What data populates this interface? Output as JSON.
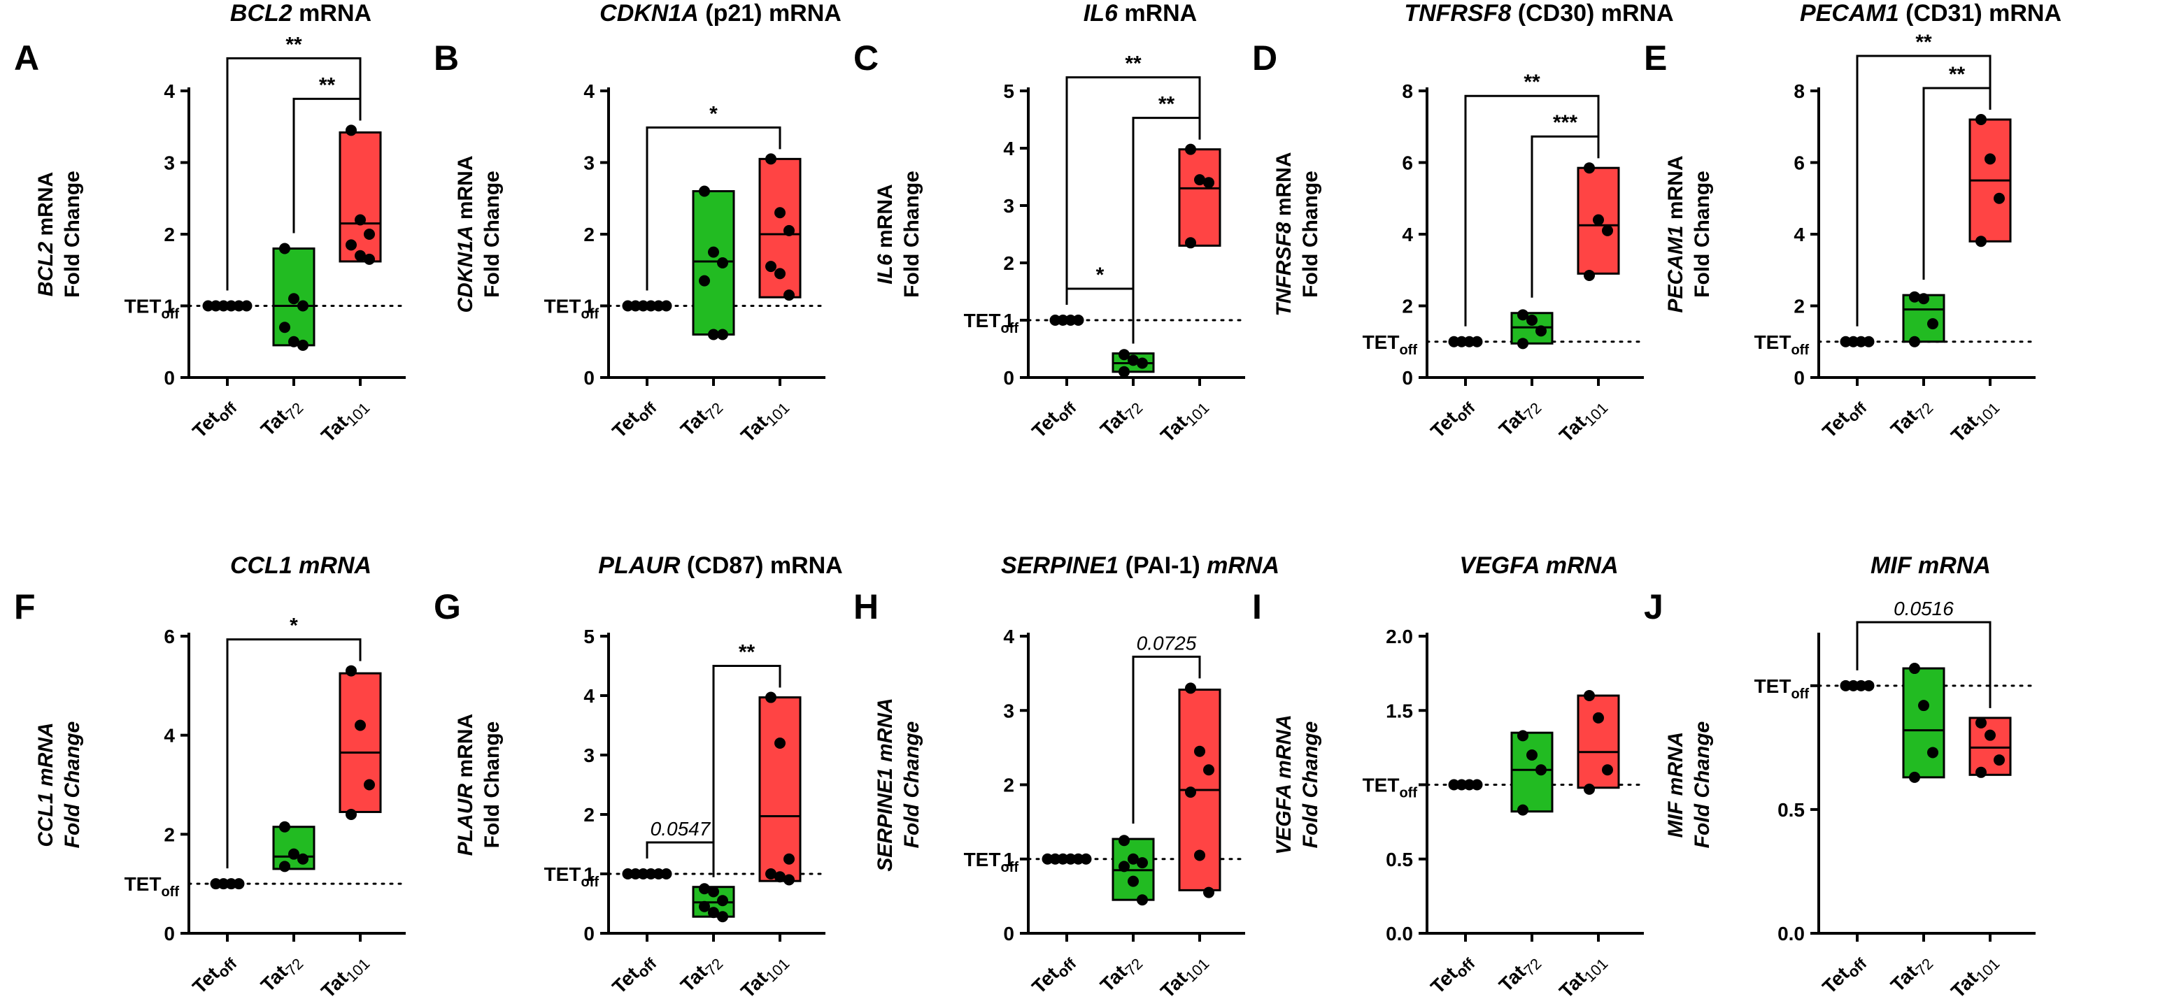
{
  "figure": {
    "reference_label": "TET",
    "reference_sub": "off"
  },
  "chart_data": [
    {
      "letter": "A",
      "type": "box",
      "title": [
        {
          "text": "BCL2",
          "italic": true
        },
        {
          "text": " mRNA",
          "italic": false
        }
      ],
      "ylabel": [
        [
          {
            "text": "BCL2",
            "italic": true
          },
          {
            "text": " mRNA",
            "italic": false
          }
        ],
        [
          {
            "text": "Fold Change",
            "italic": false
          }
        ]
      ],
      "ylim": [
        0,
        4
      ],
      "yticks": [
        0,
        1,
        2,
        3,
        4
      ],
      "scale": "linear",
      "groups": [
        {
          "name": "Tet",
          "sub": "off",
          "color": "none",
          "box": null,
          "points": [
            1,
            1,
            1,
            1,
            1,
            1
          ]
        },
        {
          "name": "Tat",
          "sub": "72",
          "color": "#22bb22",
          "box": [
            0.45,
            1.0,
            1.8
          ],
          "points": [
            1.8,
            1.1,
            1.0,
            0.7,
            0.5,
            0.45
          ]
        },
        {
          "name": "Tat",
          "sub": "101",
          "color": "#ff4444",
          "box": [
            1.62,
            2.15,
            3.42
          ],
          "points": [
            3.45,
            2.2,
            2.0,
            1.85,
            1.7,
            1.65
          ]
        }
      ],
      "sig": [
        {
          "from": 0,
          "to": 2,
          "label": "**",
          "italic": false
        },
        {
          "from": 1,
          "to": 2,
          "label": "**",
          "italic": false
        }
      ]
    },
    {
      "letter": "B",
      "type": "box",
      "title": [
        {
          "text": "CDKN1A",
          "italic": true
        },
        {
          "text": " (p21) mRNA",
          "italic": false
        }
      ],
      "ylabel": [
        [
          {
            "text": "CDKN1A",
            "italic": true
          },
          {
            "text": " mRNA",
            "italic": false
          }
        ],
        [
          {
            "text": "Fold Change",
            "italic": false
          }
        ]
      ],
      "ylim": [
        0,
        4
      ],
      "yticks": [
        0,
        1,
        2,
        3,
        4
      ],
      "scale": "linear",
      "groups": [
        {
          "name": "Tet",
          "sub": "off",
          "color": "none",
          "box": null,
          "points": [
            1,
            1,
            1,
            1,
            1,
            1
          ]
        },
        {
          "name": "Tat",
          "sub": "72",
          "color": "#22bb22",
          "box": [
            0.6,
            1.62,
            2.6
          ],
          "points": [
            2.6,
            1.75,
            1.6,
            1.35,
            0.6,
            0.6
          ]
        },
        {
          "name": "Tat",
          "sub": "101",
          "color": "#ff4444",
          "box": [
            1.12,
            2.0,
            3.05
          ],
          "points": [
            3.05,
            2.3,
            2.05,
            1.55,
            1.45,
            1.15
          ]
        }
      ],
      "sig": [
        {
          "from": 0,
          "to": 2,
          "label": "*",
          "italic": false
        }
      ]
    },
    {
      "letter": "C",
      "type": "box",
      "title": [
        {
          "text": "IL6",
          "italic": true
        },
        {
          "text": " mRNA",
          "italic": false
        }
      ],
      "ylabel": [
        [
          {
            "text": "IL6",
            "italic": true
          },
          {
            "text": " mRNA",
            "italic": false
          }
        ],
        [
          {
            "text": "Fold Change",
            "italic": false
          }
        ]
      ],
      "ylim": [
        0,
        5
      ],
      "yticks": [
        0,
        1,
        2,
        3,
        4,
        5
      ],
      "scale": "linear",
      "groups": [
        {
          "name": "Tet",
          "sub": "off",
          "color": "none",
          "box": null,
          "points": [
            1,
            1,
            1,
            1
          ]
        },
        {
          "name": "Tat",
          "sub": "72",
          "color": "#22bb22",
          "box": [
            0.1,
            0.25,
            0.42
          ],
          "points": [
            0.4,
            0.3,
            0.25,
            0.1
          ]
        },
        {
          "name": "Tat",
          "sub": "101",
          "color": "#ff4444",
          "box": [
            2.3,
            3.3,
            3.98
          ],
          "points": [
            3.98,
            3.45,
            3.4,
            2.35
          ]
        }
      ],
      "sig": [
        {
          "from": 0,
          "to": 2,
          "label": "**",
          "italic": false
        },
        {
          "from": 1,
          "to": 2,
          "label": "**",
          "italic": false
        },
        {
          "from": 0,
          "to": 1,
          "label": "*",
          "italic": false
        }
      ]
    },
    {
      "letter": "D",
      "type": "box",
      "title": [
        {
          "text": "TNFRSF8",
          "italic": true
        },
        {
          "text": " (CD30) mRNA",
          "italic": false
        }
      ],
      "ylabel": [
        [
          {
            "text": "TNFRSF8",
            "italic": true
          },
          {
            "text": " mRNA",
            "italic": false
          }
        ],
        [
          {
            "text": "Fold Change",
            "italic": false
          }
        ]
      ],
      "ylim": [
        0,
        8
      ],
      "yticks": [
        0,
        2,
        4,
        6,
        8
      ],
      "scale": "linear",
      "groups": [
        {
          "name": "Tet",
          "sub": "off",
          "color": "none",
          "box": null,
          "points": [
            1,
            1,
            1,
            1
          ]
        },
        {
          "name": "Tat",
          "sub": "72",
          "color": "#22bb22",
          "box": [
            0.95,
            1.4,
            1.8
          ],
          "points": [
            1.75,
            1.6,
            1.3,
            0.95
          ]
        },
        {
          "name": "Tat",
          "sub": "101",
          "color": "#ff4444",
          "box": [
            2.9,
            4.25,
            5.85
          ],
          "points": [
            5.85,
            4.4,
            4.1,
            2.85
          ]
        }
      ],
      "sig": [
        {
          "from": 0,
          "to": 2,
          "label": "**",
          "italic": false
        },
        {
          "from": 1,
          "to": 2,
          "label": "***",
          "italic": false
        }
      ]
    },
    {
      "letter": "E",
      "type": "box",
      "title": [
        {
          "text": "PECAM1",
          "italic": true
        },
        {
          "text": " (CD31) mRNA",
          "italic": false
        }
      ],
      "ylabel": [
        [
          {
            "text": "PECAM1",
            "italic": true
          },
          {
            "text": " mRNA",
            "italic": false
          }
        ],
        [
          {
            "text": "Fold Change",
            "italic": false
          }
        ]
      ],
      "ylim": [
        0,
        8
      ],
      "yticks": [
        0,
        2,
        4,
        6,
        8
      ],
      "scale": "linear",
      "groups": [
        {
          "name": "Tet",
          "sub": "off",
          "color": "none",
          "box": null,
          "points": [
            1,
            1,
            1,
            1
          ]
        },
        {
          "name": "Tat",
          "sub": "72",
          "color": "#22bb22",
          "box": [
            1.0,
            1.9,
            2.3
          ],
          "points": [
            2.25,
            2.2,
            1.5,
            1.0
          ]
        },
        {
          "name": "Tat",
          "sub": "101",
          "color": "#ff4444",
          "box": [
            3.8,
            5.5,
            7.2
          ],
          "points": [
            7.2,
            6.1,
            5.0,
            3.8
          ]
        }
      ],
      "sig": [
        {
          "from": 0,
          "to": 2,
          "label": "**",
          "italic": false
        },
        {
          "from": 1,
          "to": 2,
          "label": "**",
          "italic": false
        }
      ]
    },
    {
      "letter": "F",
      "type": "box",
      "title": [
        {
          "text": "CCL1 mRNA",
          "italic": true
        }
      ],
      "ylabel": [
        [
          {
            "text": "CCL1 mRNA",
            "italic": true
          }
        ],
        [
          {
            "text": "Fold Change",
            "italic": true
          }
        ]
      ],
      "ylim": [
        0,
        6
      ],
      "yticks": [
        0,
        2,
        4,
        6
      ],
      "scale": "linear",
      "groups": [
        {
          "name": "Tet",
          "sub": "off",
          "color": "none",
          "box": null,
          "points": [
            1,
            1,
            1,
            1
          ]
        },
        {
          "name": "Tat",
          "sub": "72",
          "color": "#22bb22",
          "box": [
            1.3,
            1.55,
            2.15
          ],
          "points": [
            2.15,
            1.6,
            1.5,
            1.35
          ]
        },
        {
          "name": "Tat",
          "sub": "101",
          "color": "#ff4444",
          "box": [
            2.45,
            3.65,
            5.25
          ],
          "points": [
            5.3,
            4.2,
            3.0,
            2.4
          ]
        }
      ],
      "sig": [
        {
          "from": 0,
          "to": 2,
          "label": "*",
          "italic": false
        }
      ]
    },
    {
      "letter": "G",
      "type": "box",
      "title": [
        {
          "text": "PLAUR",
          "italic": true
        },
        {
          "text": " (CD87) mRNA",
          "italic": false
        }
      ],
      "ylabel": [
        [
          {
            "text": "PLAUR",
            "italic": true
          },
          {
            "text": " mRNA",
            "italic": false
          }
        ],
        [
          {
            "text": "Fold Change",
            "italic": false
          }
        ]
      ],
      "ylim": [
        0,
        5
      ],
      "yticks": [
        0,
        1,
        2,
        3,
        4,
        5
      ],
      "scale": "linear",
      "groups": [
        {
          "name": "Tet",
          "sub": "off",
          "color": "none",
          "box": null,
          "points": [
            1,
            1,
            1,
            1,
            1,
            1
          ]
        },
        {
          "name": "Tat",
          "sub": "72",
          "color": "#22bb22",
          "box": [
            0.28,
            0.52,
            0.78
          ],
          "points": [
            0.75,
            0.7,
            0.55,
            0.45,
            0.35,
            0.28
          ]
        },
        {
          "name": "Tat",
          "sub": "101",
          "color": "#ff4444",
          "box": [
            0.88,
            1.97,
            3.97
          ],
          "points": [
            3.97,
            3.2,
            1.25,
            1.0,
            0.95,
            0.9
          ]
        }
      ],
      "sig": [
        {
          "from": 1,
          "to": 2,
          "label": "**",
          "italic": false
        },
        {
          "from": 0,
          "to": 1,
          "label": "0.0547",
          "italic": true
        }
      ]
    },
    {
      "letter": "H",
      "type": "box",
      "title": [
        {
          "text": "SERPINE1",
          "italic": true
        },
        {
          "text": " (PAI-1) ",
          "italic": false
        },
        {
          "text": "mRNA",
          "italic": true
        }
      ],
      "ylabel": [
        [
          {
            "text": "SERPINE1 mRNA",
            "italic": true
          }
        ],
        [
          {
            "text": "Fold Change",
            "italic": true
          }
        ]
      ],
      "ylim": [
        0,
        4
      ],
      "yticks": [
        0,
        1,
        2,
        3,
        4
      ],
      "scale": "linear",
      "groups": [
        {
          "name": "Tet",
          "sub": "off",
          "color": "none",
          "box": null,
          "points": [
            1,
            1,
            1,
            1,
            1,
            1
          ]
        },
        {
          "name": "Tat",
          "sub": "72",
          "color": "#22bb22",
          "box": [
            0.45,
            0.85,
            1.27
          ],
          "points": [
            1.25,
            1.0,
            0.95,
            0.9,
            0.7,
            0.45
          ]
        },
        {
          "name": "Tat",
          "sub": "101",
          "color": "#ff4444",
          "box": [
            0.58,
            1.93,
            3.28
          ],
          "points": [
            3.3,
            2.45,
            2.2,
            1.9,
            1.05,
            0.55
          ]
        }
      ],
      "sig": [
        {
          "from": 1,
          "to": 2,
          "label": "0.0725",
          "italic": true
        }
      ]
    },
    {
      "letter": "I",
      "type": "box",
      "title": [
        {
          "text": "VEGFA mRNA",
          "italic": true
        }
      ],
      "ylabel": [
        [
          {
            "text": "VEGFA mRNA",
            "italic": true
          }
        ],
        [
          {
            "text": "Fold Change",
            "italic": true
          }
        ]
      ],
      "ylim": [
        0,
        2
      ],
      "yticks": [
        0.0,
        0.5,
        1.0,
        1.5,
        2.0
      ],
      "ytick_labels": [
        "0.0",
        "0.5",
        "TET_off",
        "1.5",
        "2.0"
      ],
      "scale": "linear",
      "groups": [
        {
          "name": "Tet",
          "sub": "off",
          "color": "none",
          "box": null,
          "points": [
            1,
            1,
            1,
            1
          ]
        },
        {
          "name": "Tat",
          "sub": "72",
          "color": "#22bb22",
          "box": [
            0.82,
            1.1,
            1.35
          ],
          "points": [
            1.33,
            1.2,
            1.1,
            0.83
          ]
        },
        {
          "name": "Tat",
          "sub": "101",
          "color": "#ff4444",
          "box": [
            0.98,
            1.22,
            1.6
          ],
          "points": [
            1.6,
            1.45,
            1.1,
            0.97
          ]
        }
      ],
      "sig": []
    },
    {
      "letter": "J",
      "type": "box",
      "title": [
        {
          "text": "MIF mRNA",
          "italic": true
        }
      ],
      "ylabel": [
        [
          {
            "text": "MIF mRNA",
            "italic": true
          }
        ],
        [
          {
            "text": "Fold Change",
            "italic": true
          }
        ]
      ],
      "ylim": [
        0,
        1.2
      ],
      "yticks": [
        0.0,
        0.5,
        1.0
      ],
      "ytick_labels": [
        "0.0",
        "0.5",
        "TET_off"
      ],
      "scale": "linear",
      "groups": [
        {
          "name": "Tet",
          "sub": "off",
          "color": "none",
          "box": null,
          "points": [
            1,
            1,
            1,
            1
          ]
        },
        {
          "name": "Tat",
          "sub": "72",
          "color": "#22bb22",
          "box": [
            0.63,
            0.82,
            1.07
          ],
          "points": [
            1.07,
            0.92,
            0.73,
            0.63
          ]
        },
        {
          "name": "Tat",
          "sub": "101",
          "color": "#ff4444",
          "box": [
            0.64,
            0.75,
            0.87
          ],
          "points": [
            0.85,
            0.8,
            0.7,
            0.65
          ]
        }
      ],
      "sig": [
        {
          "from": 0,
          "to": 2,
          "label": "0.0516",
          "italic": true
        }
      ]
    }
  ]
}
